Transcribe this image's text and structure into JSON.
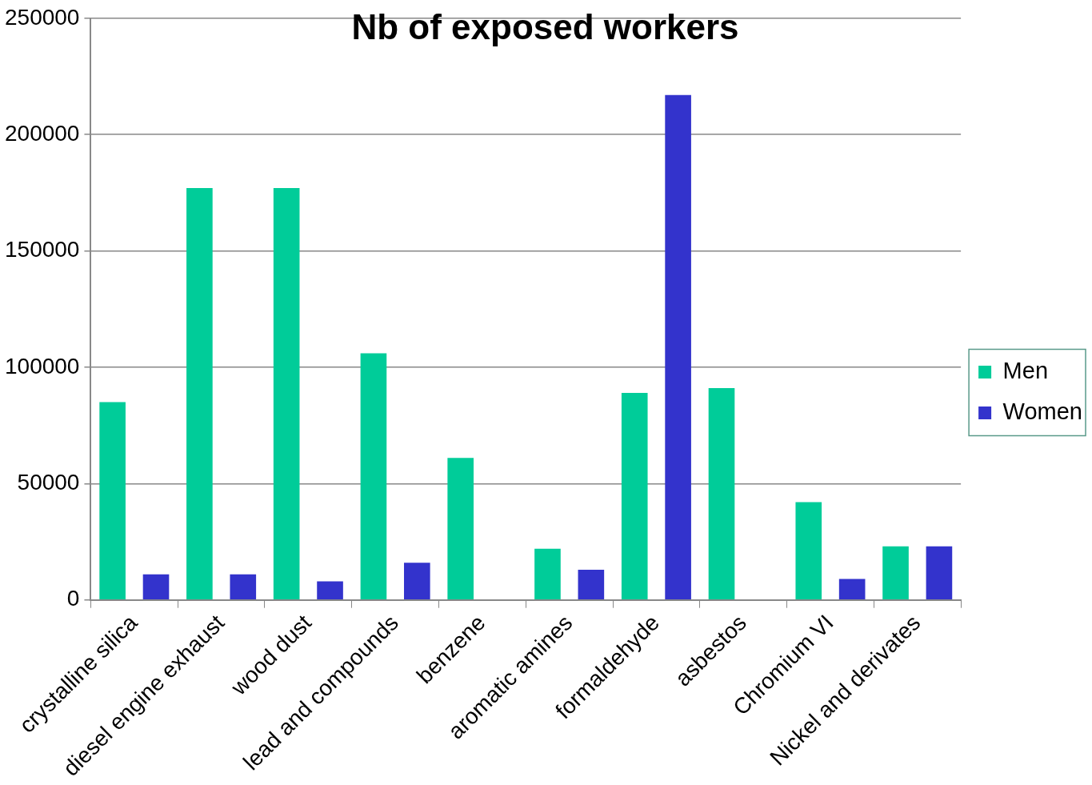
{
  "chart_data": {
    "type": "bar",
    "title": "Nb of exposed workers",
    "categories": [
      "crystalline silica",
      "diesel engine exhaust",
      "wood dust",
      "lead and compounds",
      "benzene",
      "aromatic amines",
      "formaldehyde",
      "asbestos",
      "Chromium VI",
      "Nickel and derivates"
    ],
    "series": [
      {
        "name": "Men",
        "color": "#00cc99",
        "values": [
          85000,
          177000,
          177000,
          106000,
          61000,
          22000,
          89000,
          91000,
          42000,
          23000
        ]
      },
      {
        "name": "Women",
        "color": "#3333cc",
        "values": [
          11000,
          11000,
          8000,
          16000,
          0,
          13000,
          217000,
          0,
          9000,
          23000
        ]
      }
    ],
    "ylim": [
      0,
      250000
    ],
    "yticks": [
      0,
      50000,
      100000,
      150000,
      200000,
      250000
    ],
    "grid": "y",
    "legend": "right"
  }
}
